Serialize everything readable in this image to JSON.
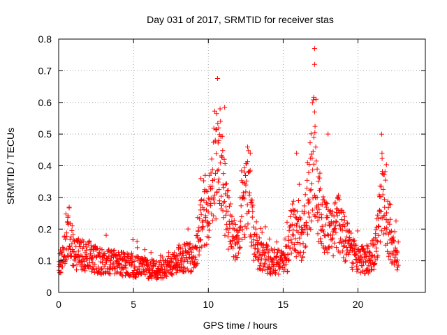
{
  "chart_data": {
    "type": "scatter",
    "title": "Day 031 of 2017, SRMTID for receiver stas",
    "xlabel": "GPS time / hours",
    "ylabel": "SRMTID / TECUs",
    "xlim": [
      0,
      24.5
    ],
    "ylim": [
      0,
      0.8
    ],
    "xticks": [
      0,
      5,
      10,
      15,
      20
    ],
    "yticks": [
      0,
      0.1,
      0.2,
      0.3,
      0.4,
      0.5,
      0.6,
      0.7,
      0.8
    ],
    "xtick_labels": [
      "0",
      "5",
      "10",
      "15",
      "20"
    ],
    "ytick_labels": [
      "0",
      "0.1",
      "0.2",
      "0.3",
      "0.4",
      "0.5",
      "0.6",
      "0.7",
      "0.8"
    ],
    "grid": true,
    "marker": "+",
    "color": "#ff0000",
    "x_data_extent": [
      0,
      22.7
    ],
    "series": [
      {
        "name": "SRMTID",
        "envelope_x": [
          0,
          0.5,
          0.7,
          1.0,
          2.0,
          3.0,
          4.0,
          5.0,
          6.0,
          7.0,
          7.5,
          8.0,
          8.5,
          9.0,
          9.3,
          9.6,
          10.0,
          10.4,
          10.8,
          11.0,
          11.3,
          11.6,
          12.0,
          12.3,
          12.6,
          12.8,
          13.0,
          13.3,
          13.6,
          14.0,
          14.5,
          15.0,
          15.3,
          15.6,
          15.9,
          16.2,
          16.5,
          16.8,
          17.0,
          17.2,
          17.4,
          17.6,
          17.9,
          18.2,
          18.5,
          18.8,
          19.0,
          19.3,
          19.6,
          20.0,
          20.4,
          20.8,
          21.1,
          21.4,
          21.6,
          21.8,
          22.0,
          22.3,
          22.6
        ],
        "envelope_y": [
          0.09,
          0.13,
          0.19,
          0.12,
          0.11,
          0.09,
          0.09,
          0.08,
          0.07,
          0.07,
          0.08,
          0.1,
          0.11,
          0.1,
          0.16,
          0.24,
          0.22,
          0.36,
          0.42,
          0.34,
          0.23,
          0.18,
          0.15,
          0.23,
          0.33,
          0.28,
          0.15,
          0.12,
          0.11,
          0.1,
          0.09,
          0.09,
          0.11,
          0.2,
          0.18,
          0.16,
          0.22,
          0.3,
          0.45,
          0.34,
          0.25,
          0.21,
          0.19,
          0.18,
          0.2,
          0.21,
          0.17,
          0.15,
          0.12,
          0.1,
          0.1,
          0.1,
          0.12,
          0.2,
          0.3,
          0.26,
          0.2,
          0.12,
          0.11
        ],
        "notable_points": [
          {
            "x": 10.7,
            "y": 0.48
          },
          {
            "x": 12.8,
            "y": 0.44
          },
          {
            "x": 17.1,
            "y": 0.77
          },
          {
            "x": 17.1,
            "y": 0.72
          },
          {
            "x": 17.2,
            "y": 0.61
          },
          {
            "x": 17.1,
            "y": 0.57
          },
          {
            "x": 18.0,
            "y": 0.5
          },
          {
            "x": 21.6,
            "y": 0.44
          },
          {
            "x": 15.9,
            "y": 0.44
          },
          {
            "x": 9.5,
            "y": 0.36
          },
          {
            "x": 0.6,
            "y": 0.22
          }
        ]
      }
    ]
  }
}
